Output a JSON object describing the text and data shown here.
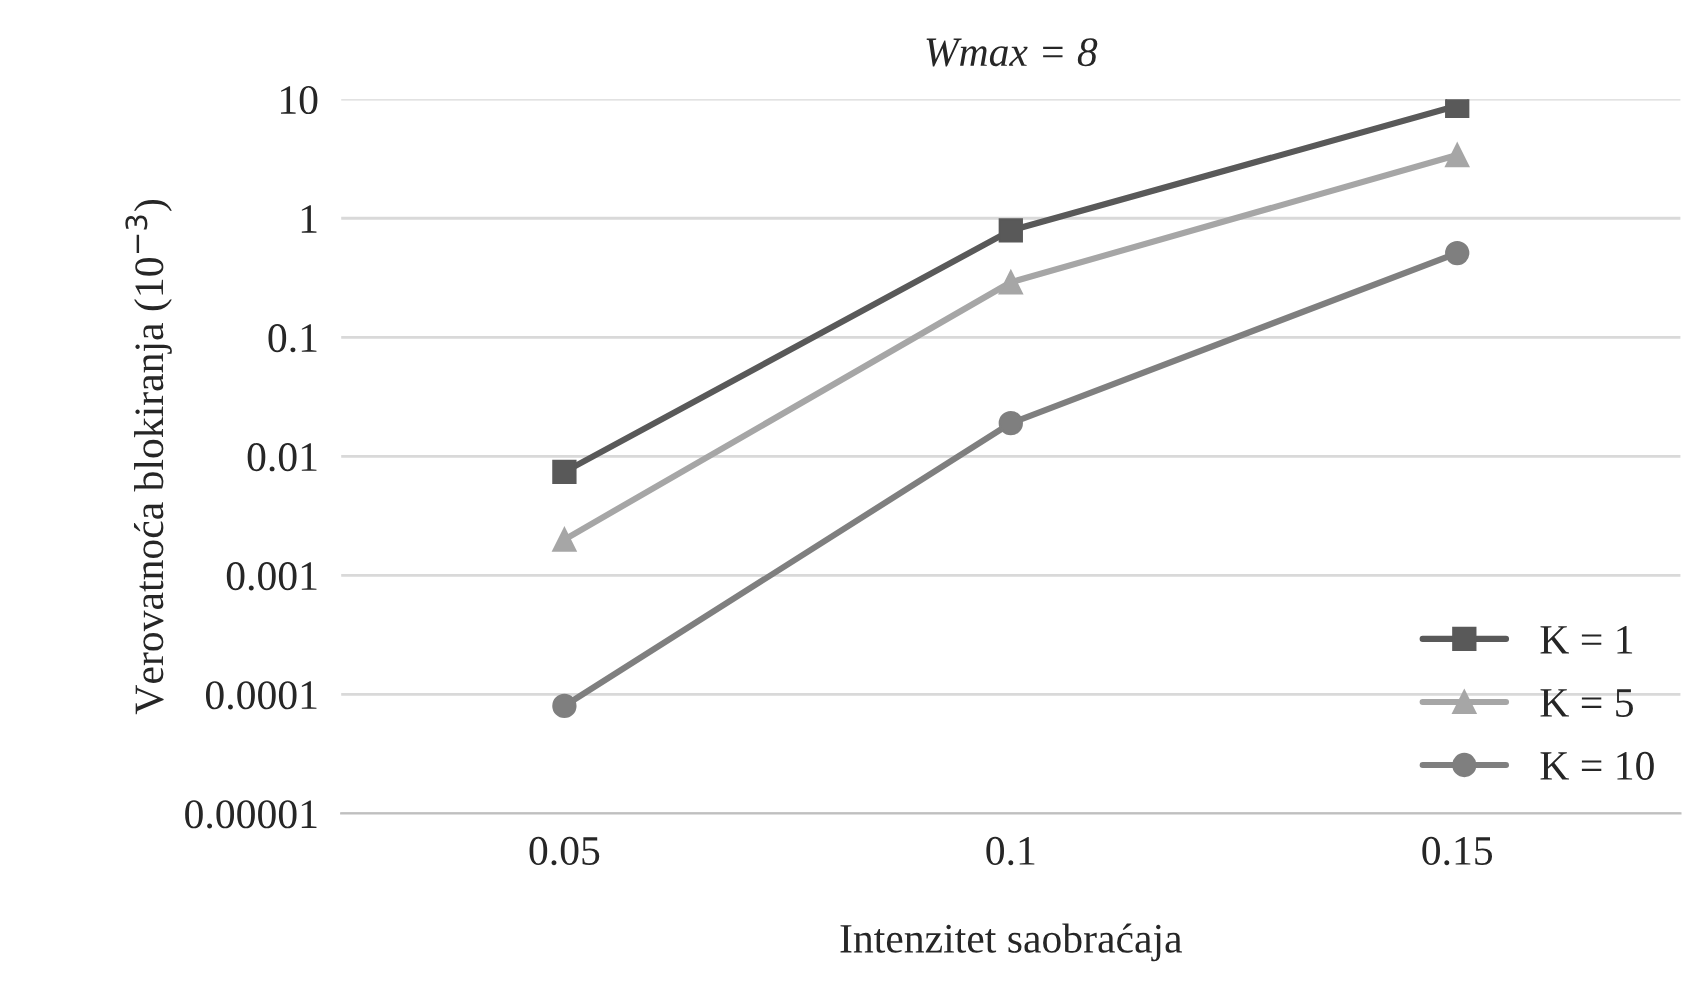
{
  "chart_data": {
    "type": "line",
    "title": "Wmax = 8",
    "xlabel": "Intenzitet saobraćaja",
    "ylabel": "Verovatnoća blokiranja (10$^{−3}$)",
    "categories": [
      "0.05",
      "0.1",
      "0.15"
    ],
    "series": [
      {
        "name": "K = 1",
        "color": "#595959",
        "marker": "square",
        "values": [
          0.0074,
          0.79,
          8.8
        ]
      },
      {
        "name": "K = 5",
        "color": "#a6a6a6",
        "marker": "triangle",
        "values": [
          0.002,
          0.29,
          3.4
        ]
      },
      {
        "name": "K = 10",
        "color": "#7f7f7f",
        "marker": "circle",
        "values": [
          8e-05,
          0.019,
          0.51
        ]
      }
    ],
    "log": "y",
    "ylim": [
      1e-05,
      10
    ],
    "yticks": [
      {
        "value": 1e-05,
        "label": "0.00001"
      },
      {
        "value": 0.0001,
        "label": "0.0001"
      },
      0.001,
      0.01,
      0.1,
      1,
      10
    ],
    "grid": "y",
    "legend": "bottom right",
    "line_style": "solid"
  }
}
